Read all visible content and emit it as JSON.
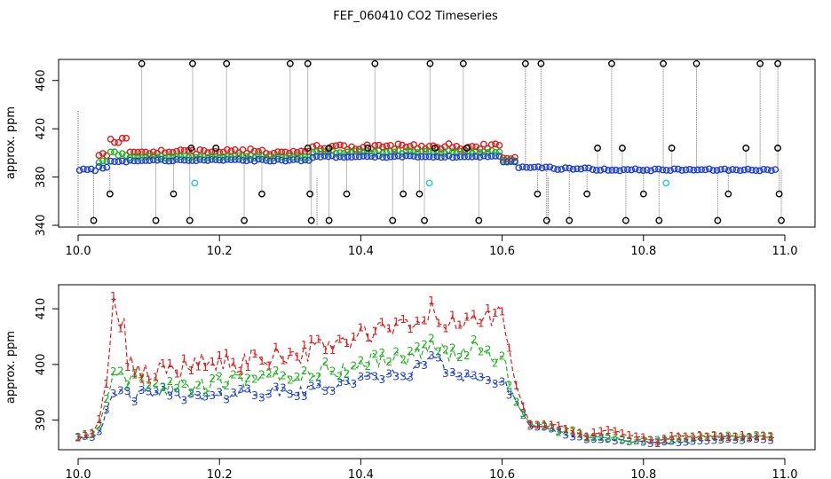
{
  "title": "FEF_060410  CO2 Timeseries",
  "colors": {
    "s1": "#e31a1c",
    "s2": "#1fb51f",
    "s3": "#1f3fd6",
    "spike": "#000000",
    "cyan": "#22cccc",
    "drop": "#777777"
  },
  "chart_data": [
    {
      "type": "scatter",
      "title": "",
      "xlabel": "",
      "ylabel": "approx. ppm",
      "xlim": [
        10.0,
        11.0
      ],
      "ylim": [
        340,
        476
      ],
      "xticks": [
        "10.0",
        "10.2",
        "10.4",
        "10.6",
        "10.8",
        "11.0"
      ],
      "xtick_values": [
        10.0,
        10.2,
        10.4,
        10.6,
        10.8,
        11.0
      ],
      "yticks": [
        "340",
        "380",
        "420",
        "460"
      ],
      "ytick_values": [
        340,
        380,
        420,
        460
      ],
      "segments": [
        {
          "x0": 10.0,
          "x1": 10.025,
          "level": 386,
          "red": 0,
          "green": 0
        },
        {
          "x0": 10.025,
          "x1": 10.045,
          "level": 388,
          "red": 10,
          "green": 5
        },
        {
          "x0": 10.045,
          "x1": 10.07,
          "level": 393,
          "red": 16,
          "green": 7
        },
        {
          "x0": 10.07,
          "x1": 10.33,
          "level": 394,
          "red": 7,
          "green": 3
        },
        {
          "x0": 10.33,
          "x1": 10.6,
          "level": 397,
          "red": 8,
          "green": 4
        },
        {
          "x0": 10.6,
          "x1": 10.62,
          "level": 393,
          "red": 3,
          "green": 1
        },
        {
          "x0": 10.62,
          "x1": 10.67,
          "level": 388,
          "red": 0,
          "green": 0
        },
        {
          "x0": 10.67,
          "x1": 10.73,
          "level": 387,
          "red": 0,
          "green": 0
        },
        {
          "x0": 10.73,
          "x1": 10.99,
          "level": 386,
          "red": 0,
          "green": 0
        }
      ],
      "spikes_high": [
        10.09,
        10.162,
        10.21,
        10.3,
        10.325,
        10.42,
        10.498,
        10.545,
        10.633,
        10.655,
        10.755,
        10.828,
        10.875,
        10.965,
        10.99
      ],
      "spikes_low_345": [
        10.022,
        10.11,
        10.158,
        10.235,
        10.33,
        10.355,
        10.445,
        10.49,
        10.567,
        10.663,
        10.695,
        10.775,
        10.822,
        10.905,
        10.995
      ],
      "spikes_low_365": [
        10.045,
        10.135,
        10.26,
        10.328,
        10.38,
        10.46,
        10.483,
        10.65,
        10.72,
        10.8,
        10.92,
        10.992
      ],
      "spikes_mid_405": [
        10.16,
        10.195,
        10.325,
        10.355,
        10.41,
        10.505,
        10.55,
        10.735,
        10.77,
        10.84,
        10.945,
        10.99
      ],
      "cyan_points": [
        {
          "x": 10.165,
          "y": 375
        },
        {
          "x": 10.497,
          "y": 375
        },
        {
          "x": 10.832,
          "y": 375
        }
      ],
      "dropouts": [
        10.0,
        10.338,
        10.665
      ]
    },
    {
      "type": "line",
      "title": "",
      "xlabel": "",
      "ylabel": "approx. ppm",
      "xlim": [
        10.0,
        11.0
      ],
      "ylim": [
        385,
        414
      ],
      "xticks": [
        "10.0",
        "10.2",
        "10.4",
        "10.6",
        "10.8",
        "11.0"
      ],
      "xtick_values": [
        10.0,
        10.2,
        10.4,
        10.6,
        10.8,
        11.0
      ],
      "yticks": [
        "390",
        "400",
        "410"
      ],
      "ytick_values": [
        390,
        400,
        410
      ],
      "series": [
        {
          "name": "1",
          "color": "#e31a1c",
          "x": [
            10.0,
            10.02,
            10.03,
            10.04,
            10.05,
            10.055,
            10.06,
            10.065,
            10.07,
            10.08,
            10.1,
            10.12,
            10.14,
            10.16,
            10.18,
            10.2,
            10.22,
            10.24,
            10.26,
            10.28,
            10.3,
            10.32,
            10.34,
            10.36,
            10.38,
            10.4,
            10.42,
            10.44,
            10.46,
            10.48,
            10.5,
            10.51,
            10.52,
            10.54,
            10.56,
            10.58,
            10.6,
            10.62,
            10.64,
            10.66,
            10.68,
            10.7,
            10.72,
            10.74,
            10.76,
            10.78,
            10.8,
            10.82,
            10.84,
            10.86,
            10.88,
            10.9,
            10.92,
            10.94,
            10.96,
            10.98,
            10.99
          ],
          "values": [
            387,
            387.5,
            390,
            398,
            412,
            408,
            405,
            409,
            400,
            399,
            398,
            399,
            400,
            399,
            401,
            400,
            400,
            401,
            401,
            402,
            402,
            402,
            403,
            404,
            404,
            405,
            406,
            406,
            407,
            407,
            410,
            408,
            407,
            407,
            409,
            408,
            409,
            396,
            389,
            389,
            389,
            388,
            387,
            388,
            388,
            387,
            387,
            386,
            387,
            387,
            387,
            387,
            387,
            387,
            387,
            387,
            387
          ]
        },
        {
          "name": "2",
          "color": "#1fb51f",
          "x": [
            10.0,
            10.02,
            10.03,
            10.04,
            10.05,
            10.06,
            10.07,
            10.08,
            10.1,
            10.12,
            10.14,
            10.16,
            10.18,
            10.2,
            10.22,
            10.24,
            10.26,
            10.28,
            10.3,
            10.32,
            10.34,
            10.36,
            10.38,
            10.4,
            10.42,
            10.44,
            10.46,
            10.48,
            10.5,
            10.52,
            10.54,
            10.56,
            10.58,
            10.6,
            10.62,
            10.64,
            10.66,
            10.68,
            10.7,
            10.72,
            10.74,
            10.76,
            10.78,
            10.8,
            10.82,
            10.84,
            10.86,
            10.88,
            10.9,
            10.92,
            10.94,
            10.96,
            10.98,
            10.99
          ],
          "values": [
            387,
            387.3,
            389,
            394,
            398,
            398,
            397,
            397,
            396,
            396,
            396,
            396,
            396,
            397,
            397,
            397,
            397,
            398,
            398,
            398,
            399,
            399,
            399,
            400,
            401,
            401,
            401,
            402,
            404,
            402,
            402,
            403,
            402,
            401,
            393,
            389,
            389,
            388,
            388,
            387,
            387,
            387,
            386,
            386.5,
            386.5,
            386.5,
            386.5,
            387,
            387,
            387,
            387,
            387,
            387,
            387
          ]
        },
        {
          "name": "3",
          "color": "#1f3fd6",
          "x": [
            10.0,
            10.02,
            10.03,
            10.04,
            10.05,
            10.06,
            10.07,
            10.08,
            10.1,
            10.12,
            10.14,
            10.16,
            10.18,
            10.2,
            10.22,
            10.24,
            10.26,
            10.28,
            10.3,
            10.32,
            10.34,
            10.36,
            10.38,
            10.4,
            10.42,
            10.44,
            10.46,
            10.48,
            10.5,
            10.52,
            10.54,
            10.56,
            10.58,
            10.6,
            10.62,
            10.64,
            10.66,
            10.68,
            10.7,
            10.72,
            10.74,
            10.76,
            10.78,
            10.8,
            10.82,
            10.84,
            10.86,
            10.88,
            10.9,
            10.92,
            10.94,
            10.96,
            10.98,
            10.99
          ],
          "values": [
            387,
            387,
            388,
            391,
            394,
            395,
            395,
            394,
            395,
            395,
            395,
            394,
            394,
            394,
            395,
            395,
            395,
            395,
            395,
            395,
            396,
            396,
            397,
            397,
            398,
            398,
            398,
            399,
            402,
            399,
            398,
            398,
            397,
            397,
            393,
            389,
            388.5,
            388,
            387,
            386.5,
            386.5,
            386.5,
            386,
            386,
            386,
            386,
            386,
            386.5,
            386.5,
            386.5,
            386.5,
            386.5,
            386.5,
            386.5
          ]
        }
      ]
    }
  ]
}
